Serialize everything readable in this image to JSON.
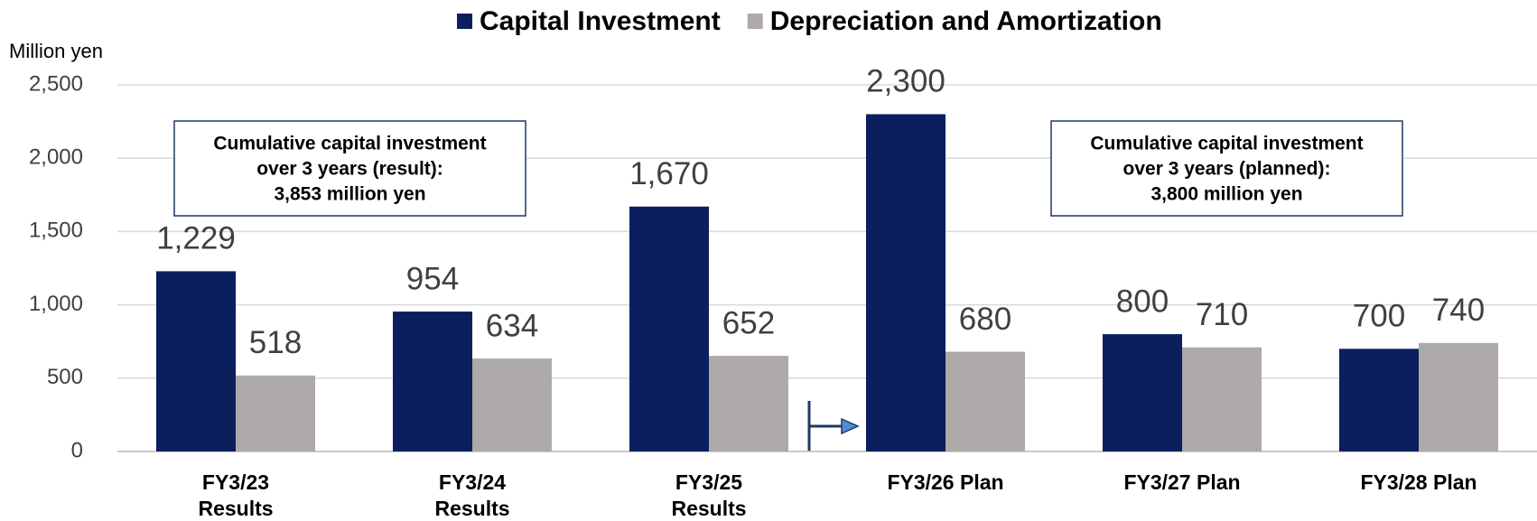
{
  "chart_data": {
    "type": "bar",
    "y_axis_label": "Million yen",
    "categories": [
      "FY3/23 Results",
      "FY3/24 Results",
      "FY3/25 Results",
      "FY3/26 Plan",
      "FY3/27 Plan",
      "FY3/28 Plan"
    ],
    "series": [
      {
        "name": "Capital Investment",
        "color": "#0b1f5e",
        "values": [
          1229,
          954,
          1670,
          2300,
          800,
          700
        ],
        "value_labels": [
          "1,229",
          "954",
          "1,670",
          "2,300",
          "800",
          "700"
        ]
      },
      {
        "name": "Depreciation and Amortization",
        "color": "#aeaaaa",
        "values": [
          518,
          634,
          652,
          680,
          710,
          740
        ],
        "value_labels": [
          "518",
          "634",
          "652",
          "680",
          "710",
          "740"
        ]
      }
    ],
    "ylim": [
      0,
      2500
    ],
    "yticks": [
      0,
      500,
      {
        "value": 1000,
        "label": "1,000"
      },
      {
        "value": 1500,
        "label": "1,500"
      },
      {
        "value": 2000,
        "label": "2,000"
      },
      {
        "value": 2500,
        "label": "2,500"
      }
    ],
    "grid": true,
    "legend": "top",
    "annotations": [
      {
        "lines": [
          "Cumulative capital investment",
          "over 3 years (result):",
          "3,853 million yen"
        ]
      },
      {
        "lines": [
          "Cumulative capital investment",
          "over 3 years (planned):",
          "3,800 million yen"
        ]
      }
    ]
  }
}
